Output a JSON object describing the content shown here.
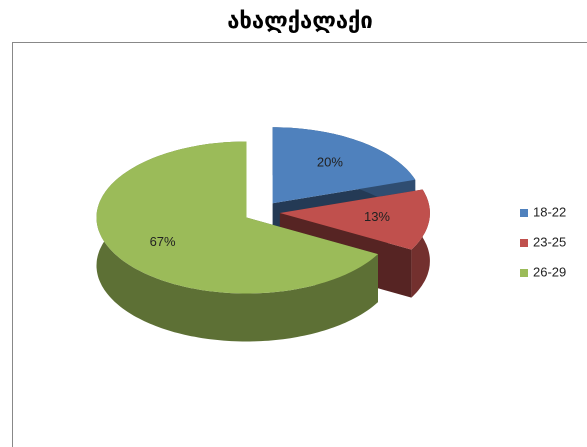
{
  "chart_data": {
    "type": "pie",
    "title": "ახალქალაქი",
    "categories": [
      "18-22",
      "23-25",
      "26-29"
    ],
    "values": [
      20,
      13,
      67
    ],
    "value_labels": [
      "20%",
      "13%",
      "67%"
    ],
    "colors": [
      "#4f81bd",
      "#c0504d",
      "#9bbb59"
    ],
    "legend": "right"
  }
}
